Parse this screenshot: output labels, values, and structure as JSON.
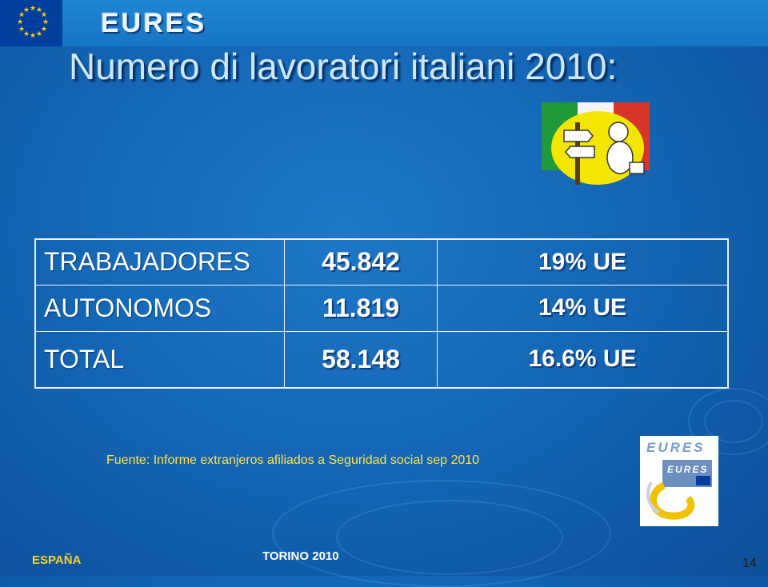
{
  "header": {
    "logo_text": "EURES"
  },
  "slide": {
    "title": "Numero di lavoratori italiani 2010:",
    "table": [
      {
        "label": "TRABAJADORES",
        "value": "45.842",
        "pct": "19% UE"
      },
      {
        "label": "AUTONOMOS",
        "value": "11.819",
        "pct": "14% UE"
      },
      {
        "label": "TOTAL",
        "value": "58.148",
        "pct": "16.6% UE"
      }
    ],
    "source": "Fuente: Informe extranjeros afiliados a Seguridad social sep 2010"
  },
  "badge": {
    "top_text": "EURES",
    "inner_text": "EURES"
  },
  "footer": {
    "left": "ESPAÑA",
    "center": "TORINO 2010",
    "page_number": "14"
  },
  "colors": {
    "background": "#1467b6",
    "title": "#cfe6ff",
    "source_text": "#ffe24a",
    "footer_left": "#ffd21e"
  }
}
